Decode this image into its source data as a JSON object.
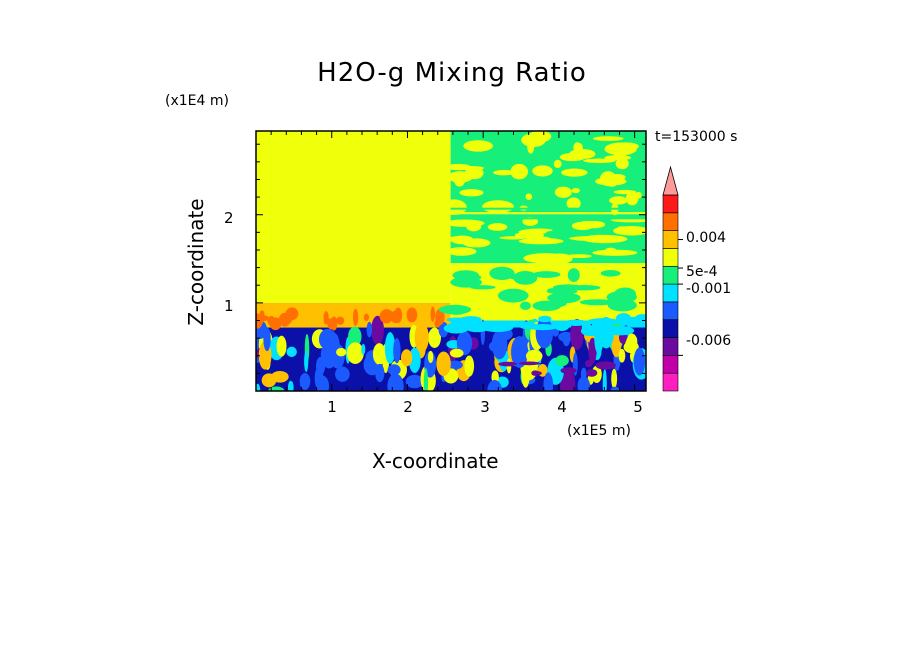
{
  "chart_data": {
    "type": "heatmap",
    "title": "H2O-g Mixing Ratio",
    "xlabel": "X-coordinate",
    "ylabel": "Z-coordinate",
    "x_unit": "(x1E5 m)",
    "z_unit": "(x1E4 m)",
    "time_label": "t=153000 s",
    "xlim": [
      0,
      5.15
    ],
    "zlim": [
      0,
      2.95
    ],
    "x_ticks": [
      "1",
      "2",
      "3",
      "4",
      "5"
    ],
    "z_ticks": [
      "1",
      "2"
    ],
    "colorbar": {
      "levels": 11,
      "colors": [
        "#ff1fc0",
        "#c000a8",
        "#6a0aa0",
        "#0a10a8",
        "#1a5aff",
        "#00e0ff",
        "#16f07a",
        "#f0ff0a",
        "#ffc000",
        "#ff7000",
        "#ff1a1a",
        "#ff9a9a"
      ],
      "labels": [
        {
          "text": "0.004",
          "level": 8.5
        },
        {
          "text": "5e-4",
          "level": 6.9
        },
        {
          "text": "-0.001",
          "level": 6.0
        },
        {
          "text": "-0.006",
          "level": 2.0
        }
      ],
      "extend": "max"
    },
    "regions": [
      {
        "name": "upper-left background",
        "x": [
          0,
          2.57
        ],
        "z": [
          1.0,
          2.95
        ],
        "level": 7
      },
      {
        "name": "upper-left moist band",
        "x": [
          0,
          2.57
        ],
        "z": [
          0.72,
          1.0
        ],
        "level": 8
      },
      {
        "name": "right upper layer",
        "x": [
          2.57,
          5.15
        ],
        "z": [
          2.0,
          2.95
        ],
        "level": 6
      },
      {
        "name": "right middle layer",
        "x": [
          2.57,
          5.15
        ],
        "z": [
          1.45,
          2.0
        ],
        "level": 6
      },
      {
        "name": "right lower layer",
        "x": [
          2.57,
          5.15
        ],
        "z": [
          0.8,
          1.45
        ],
        "level": 7
      },
      {
        "name": "right transition",
        "x": [
          2.57,
          5.15
        ],
        "z": [
          0.6,
          0.8
        ],
        "level": 5
      },
      {
        "name": "boundary layer",
        "x": [
          0,
          5.15
        ],
        "z": [
          0,
          0.72
        ],
        "level": 3
      }
    ]
  }
}
